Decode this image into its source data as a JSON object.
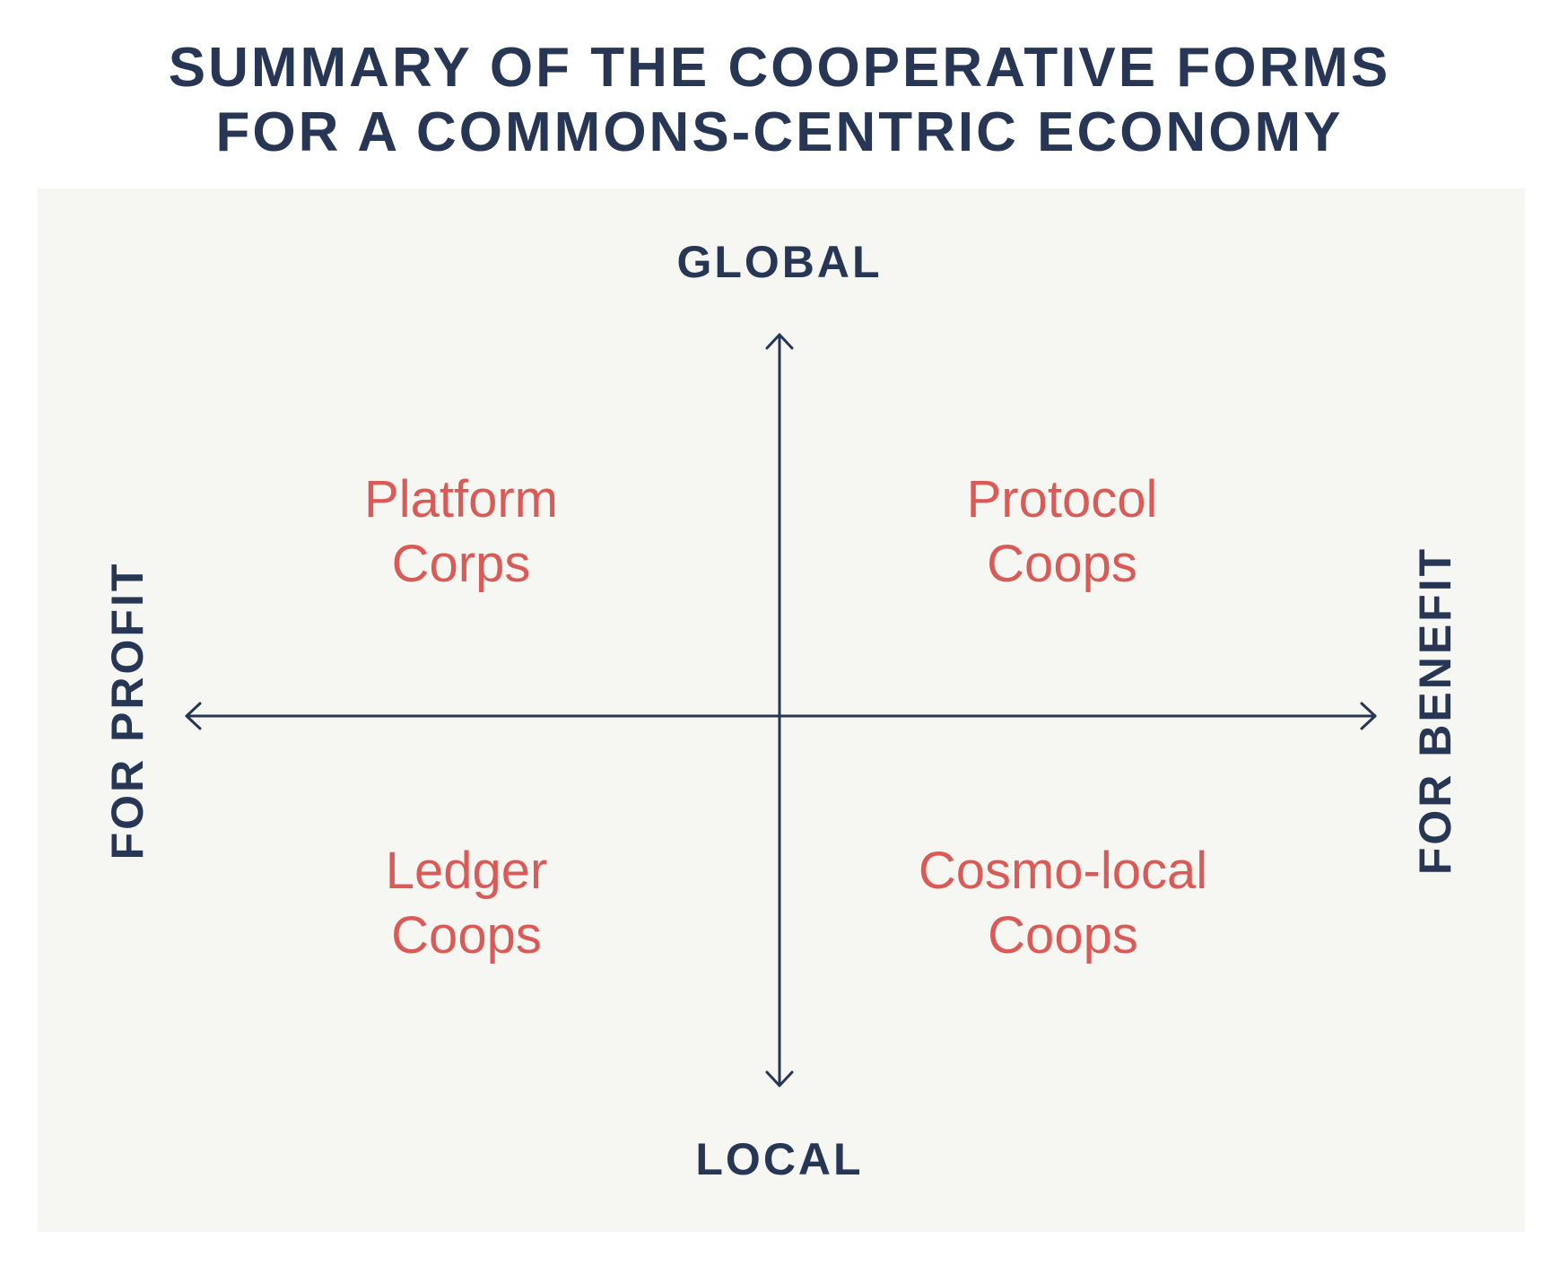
{
  "title": {
    "line1": "SUMMARY OF THE COOPERATIVE FORMS",
    "line2": "FOR A COMMONS-CENTRIC ECONOMY"
  },
  "axes": {
    "top": "GLOBAL",
    "bottom": "LOCAL",
    "left": "FOR PROFIT",
    "right": "FOR BENEFIT"
  },
  "quadrants": {
    "top_left": {
      "line1": "Platform",
      "line2": "Corps"
    },
    "top_right": {
      "line1": "Protocol",
      "line2": "Coops"
    },
    "bottom_left": {
      "line1": "Ledger",
      "line2": "Coops"
    },
    "bottom_right": {
      "line1": "Cosmo-local",
      "line2": "Coops"
    }
  },
  "colors": {
    "navy": "#263654",
    "coral": "#d95b57",
    "panel": "#f6f6f3"
  }
}
